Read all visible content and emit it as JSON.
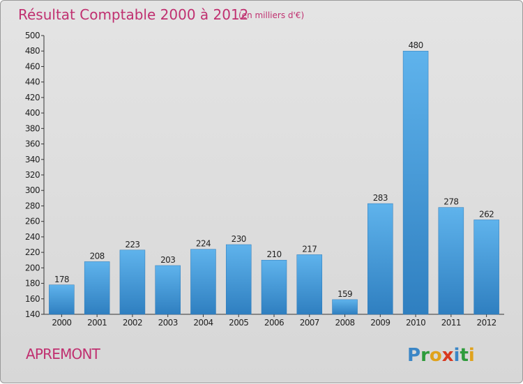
{
  "title": "Résultat Comptable 2000 à 2012",
  "unit": "(en milliers d'€)",
  "city": "APREMONT",
  "brand": {
    "letters": [
      {
        "ch": "P",
        "color": "#3b86c6"
      },
      {
        "ch": "r",
        "color": "#2e9b3b"
      },
      {
        "ch": "o",
        "color": "#e0a21c"
      },
      {
        "ch": "x",
        "color": "#d8381f"
      },
      {
        "ch": "i",
        "color": "#3b86c6"
      },
      {
        "ch": "t",
        "color": "#2e9b3b"
      },
      {
        "ch": "i",
        "color": "#e0a21c"
      }
    ]
  },
  "chart_data": {
    "type": "bar",
    "categories": [
      "2000",
      "2001",
      "2002",
      "2003",
      "2004",
      "2005",
      "2006",
      "2007",
      "2008",
      "2009",
      "2010",
      "2011",
      "2012"
    ],
    "values": [
      178,
      208,
      223,
      203,
      224,
      230,
      210,
      217,
      159,
      283,
      480,
      278,
      262
    ],
    "ylim": [
      140,
      500
    ],
    "yticks": [
      140,
      160,
      180,
      200,
      220,
      240,
      260,
      280,
      300,
      320,
      340,
      360,
      380,
      400,
      420,
      440,
      460,
      480,
      500
    ],
    "grid": false,
    "bar_color": "#4aa3e2",
    "title_color": "#c03070"
  }
}
